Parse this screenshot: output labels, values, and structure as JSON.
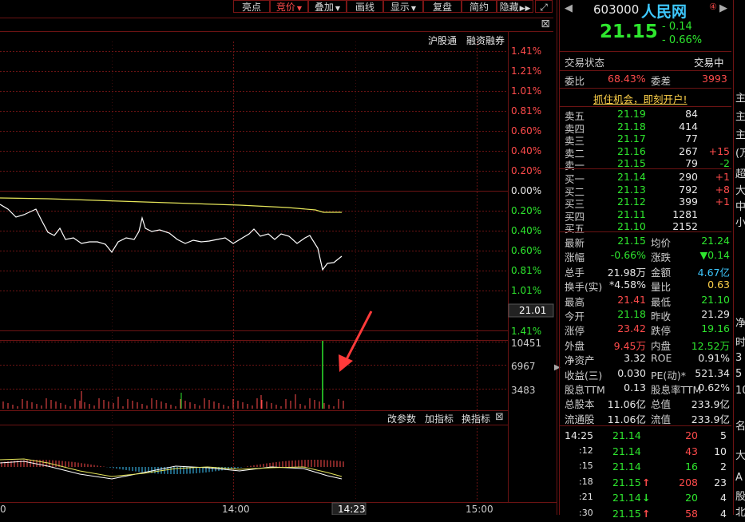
{
  "toolbar": {
    "buttons": [
      "亮点",
      "竞价",
      "叠加",
      "画线",
      "显示",
      "复盘",
      "简约",
      "隐藏"
    ],
    "active_index": 1,
    "dropdown_indices": [
      1,
      2,
      4
    ],
    "more_icon": "double-chevron-right-icon",
    "fullscreen_icon": "expand-icon"
  },
  "chart_links": {
    "hsgt": "沪股通",
    "margin": "融资融券"
  },
  "price_axis": {
    "up_labels": [
      "1.41%",
      "1.21%",
      "1.01%",
      "0.81%",
      "0.60%",
      "0.40%",
      "0.20%"
    ],
    "zero_label": "0.00%",
    "down_labels": [
      "0.20%",
      "0.40%",
      "0.60%",
      "0.81%",
      "1.01%"
    ],
    "cursor_price": "21.01",
    "bottom_label": "1.41%"
  },
  "volume_axis": [
    "10451",
    "6967",
    "3483"
  ],
  "indicator_bar": {
    "modify": "改参数",
    "add": "加指标",
    "swap": "换指标"
  },
  "time_axis": {
    "left": "0",
    "mid": "14:00",
    "cursor": "14:23",
    "end": "15:00"
  },
  "stock": {
    "code": "603000",
    "name": "人民网",
    "price": "21.15",
    "change": "- 0.14",
    "change_pct": "- 0.66%",
    "badge": "④"
  },
  "status": {
    "label": "交易状态",
    "value": "交易中"
  },
  "weibi": {
    "label": "委比",
    "value": "68.43%",
    "label2": "委差",
    "value2": "3993"
  },
  "promo": "抓住机会，即刻开户!",
  "asks": [
    {
      "label": "卖五",
      "price": "21.19",
      "vol": "84",
      "chg": ""
    },
    {
      "label": "卖四",
      "price": "21.18",
      "vol": "414",
      "chg": ""
    },
    {
      "label": "卖三",
      "price": "21.17",
      "vol": "77",
      "chg": ""
    },
    {
      "label": "卖二",
      "price": "21.16",
      "vol": "267",
      "chg": "+15"
    },
    {
      "label": "卖一",
      "price": "21.15",
      "vol": "79",
      "chg": "-2"
    }
  ],
  "bids": [
    {
      "label": "买一",
      "price": "21.14",
      "vol": "290",
      "chg": "+1"
    },
    {
      "label": "买二",
      "price": "21.13",
      "vol": "792",
      "chg": "+8"
    },
    {
      "label": "买三",
      "price": "21.12",
      "vol": "399",
      "chg": "+1"
    },
    {
      "label": "买四",
      "price": "21.11",
      "vol": "1281",
      "chg": ""
    },
    {
      "label": "买五",
      "price": "21.10",
      "vol": "2152",
      "chg": ""
    }
  ],
  "stats": [
    {
      "l1": "最新",
      "v1": "21.15",
      "c1": "green",
      "l2": "均价",
      "v2": "21.24",
      "c2": "green"
    },
    {
      "l1": "涨幅",
      "v1": "-0.66%",
      "c1": "green",
      "l2": "涨跌",
      "v2": "▼0.14",
      "c2": "green"
    },
    {
      "l1": "总手",
      "v1": "21.98万",
      "c1": "white",
      "l2": "金额",
      "v2": "4.67亿",
      "c2": "cyan"
    },
    {
      "l1": "换手(实)",
      "v1": "*4.58%",
      "c1": "white",
      "l2": "量比",
      "v2": "0.63",
      "c2": "yellow"
    },
    {
      "l1": "最高",
      "v1": "21.41",
      "c1": "red",
      "l2": "最低",
      "v2": "21.10",
      "c2": "green"
    },
    {
      "l1": "今开",
      "v1": "21.18",
      "c1": "green",
      "l2": "昨收",
      "v2": "21.29",
      "c2": "white"
    },
    {
      "l1": "涨停",
      "v1": "23.42",
      "c1": "red",
      "l2": "跌停",
      "v2": "19.16",
      "c2": "green"
    },
    {
      "l1": "外盘",
      "v1": "9.45万",
      "c1": "red",
      "l2": "内盘",
      "v2": "12.52万",
      "c2": "green"
    },
    {
      "l1": "净资产",
      "v1": "3.32",
      "c1": "white",
      "l2": "ROE",
      "v2": "0.91%",
      "c2": "white"
    },
    {
      "l1": "收益(三)",
      "v1": "0.030",
      "c1": "white",
      "l2": "PE(动)*",
      "v2": "521.34",
      "c2": "white"
    },
    {
      "l1": "股息TTM",
      "v1": "0.13",
      "c1": "white",
      "l2": "股息率TTM",
      "v2": "0.62%",
      "c2": "white"
    },
    {
      "l1": "总股本",
      "v1": "11.06亿",
      "c1": "white",
      "l2": "总值",
      "v2": "233.9亿",
      "c2": "white"
    },
    {
      "l1": "流通股",
      "v1": "11.06亿",
      "c1": "white",
      "l2": "流值",
      "v2": "233.9亿",
      "c2": "white"
    }
  ],
  "ticks": [
    {
      "time": "14:25",
      "price": "21.14",
      "arrow": "",
      "vol": "20",
      "num": "5",
      "vc": "red"
    },
    {
      "time": ":12",
      "price": "21.14",
      "arrow": "",
      "vol": "43",
      "num": "10",
      "vc": "red"
    },
    {
      "time": ":15",
      "price": "21.14",
      "arrow": "",
      "vol": "16",
      "num": "2",
      "vc": "green"
    },
    {
      "time": ":18",
      "price": "21.15",
      "arrow": "↑",
      "vol": "208",
      "num": "23",
      "vc": "red"
    },
    {
      "time": ":21",
      "price": "21.14",
      "arrow": "↓",
      "vol": "20",
      "num": "4",
      "vc": "green"
    },
    {
      "time": ":30",
      "price": "21.15",
      "arrow": "↑",
      "vol": "58",
      "num": "4",
      "vc": "red"
    }
  ],
  "far_right": [
    "主",
    "主",
    "主",
    "(万",
    "超",
    "大",
    "中",
    "小",
    "净",
    "时",
    "3",
    "5",
    "10",
    "名",
    "大",
    "A",
    "股",
    "北"
  ],
  "colors": {
    "up": "#ff4b4b",
    "down": "#2ee62e",
    "grid": "#6b1313",
    "price_line": "#ffffff",
    "avg_line": "#e6e65a",
    "arrow": "#ff3a3a"
  }
}
